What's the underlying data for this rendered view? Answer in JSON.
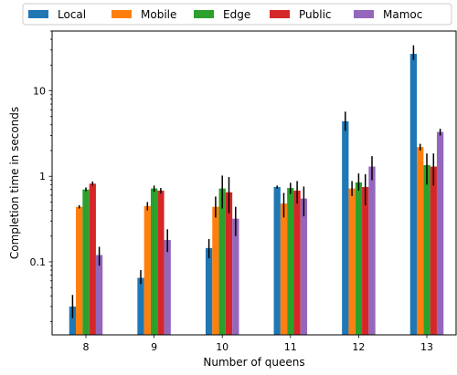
{
  "chart_data": {
    "type": "bar",
    "yscale": "log",
    "title": "",
    "xlabel": "Number of queens",
    "ylabel": "Completion time in seconds",
    "categories": [
      "8",
      "9",
      "10",
      "11",
      "12",
      "13"
    ],
    "ylim": [
      0.014,
      50
    ],
    "yticks": [
      {
        "value": 0.1,
        "label": "0.1"
      },
      {
        "value": 1,
        "label": "1"
      },
      {
        "value": 10,
        "label": "10"
      }
    ],
    "grid": false,
    "legend_position": "top (above plot, single row)",
    "series": [
      {
        "name": "Local",
        "color": "#1f77b4",
        "values": [
          0.03,
          0.065,
          0.145,
          0.75,
          4.4,
          27
        ],
        "err_low": [
          0.022,
          0.055,
          0.11,
          0.72,
          3.4,
          23
        ],
        "err_high": [
          0.041,
          0.08,
          0.185,
          0.78,
          5.7,
          34
        ]
      },
      {
        "name": "Mobile",
        "color": "#ff7f0e",
        "values": [
          0.44,
          0.45,
          0.44,
          0.48,
          0.72,
          2.2
        ],
        "err_low": [
          0.42,
          0.4,
          0.33,
          0.33,
          0.59,
          2.0
        ],
        "err_high": [
          0.46,
          0.5,
          0.58,
          0.64,
          0.88,
          2.4
        ]
      },
      {
        "name": "Edge",
        "color": "#2ca02c",
        "values": [
          0.7,
          0.72,
          0.72,
          0.73,
          0.85,
          1.35
        ],
        "err_low": [
          0.67,
          0.66,
          0.42,
          0.62,
          0.68,
          0.8
        ],
        "err_high": [
          0.74,
          0.78,
          1.02,
          0.84,
          1.08,
          1.85
        ]
      },
      {
        "name": "Public",
        "color": "#d62728",
        "values": [
          0.82,
          0.68,
          0.65,
          0.68,
          0.75,
          1.3
        ],
        "err_low": [
          0.78,
          0.63,
          0.37,
          0.48,
          0.46,
          0.78
        ],
        "err_high": [
          0.87,
          0.73,
          0.98,
          0.88,
          1.06,
          1.85
        ]
      },
      {
        "name": "Mamoc",
        "color": "#9467bd",
        "values": [
          0.12,
          0.18,
          0.32,
          0.55,
          1.3,
          3.3
        ],
        "err_low": [
          0.09,
          0.13,
          0.2,
          0.34,
          0.9,
          3.0
        ],
        "err_high": [
          0.15,
          0.24,
          0.44,
          0.76,
          1.72,
          3.6
        ]
      }
    ]
  }
}
